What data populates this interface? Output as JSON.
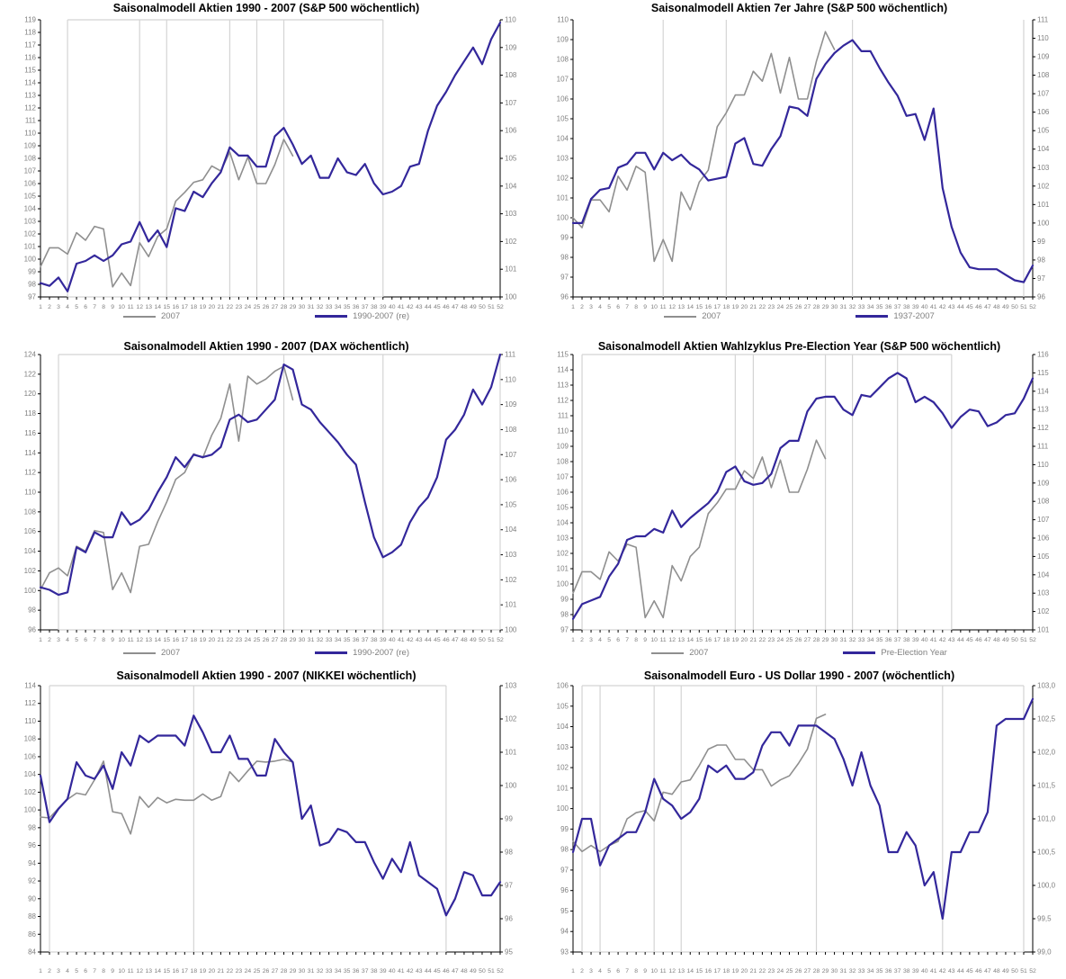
{
  "page": {
    "background": "#ffffff"
  },
  "colors": {
    "series_2007": "#8f8f8f",
    "series_seasonal": "#33279b",
    "gridline": "#d4d4d4",
    "axis": "#000000",
    "tick_label": "#808080",
    "title": "#000000",
    "legend_text": "#7f7f7f"
  },
  "x_ticks": [
    1,
    2,
    3,
    4,
    5,
    6,
    7,
    8,
    9,
    10,
    11,
    12,
    13,
    14,
    15,
    16,
    17,
    18,
    19,
    20,
    21,
    22,
    23,
    24,
    25,
    26,
    27,
    28,
    29,
    30,
    31,
    32,
    33,
    34,
    35,
    36,
    37,
    38,
    39,
    40,
    41,
    42,
    43,
    44,
    45,
    46,
    47,
    48,
    49,
    50,
    51,
    52
  ],
  "charts": [
    {
      "key": "sp500-1990-2007",
      "title": "Saisonalmodell Aktien 1990 - 2007 (S&P 500 wöchentlich)",
      "y_left": {
        "min": 97,
        "max": 119,
        "step": 1,
        "decimals": 0
      },
      "y_right": {
        "min": 100,
        "max": 110,
        "step": 1,
        "decimals": 0
      },
      "box_weeks": [
        4,
        39
      ],
      "gridline_weeks": [
        12,
        15,
        22,
        25,
        28
      ],
      "legend_labels": [
        "2007",
        "1990-2007 (re)"
      ],
      "series": [
        {
          "name": "2007",
          "color_key": "series_2007",
          "axis": "left",
          "values": [
            99.4,
            100.9,
            100.9,
            100.4,
            102.1,
            101.5,
            102.6,
            102.4,
            97.8,
            98.9,
            97.9,
            101.3,
            100.2,
            101.8,
            102.4,
            104.6,
            105.3,
            106.1,
            106.3,
            107.4,
            107.0,
            108.5,
            106.3,
            108.1,
            106.0,
            106.0,
            107.5,
            109.5,
            108.2
          ]
        },
        {
          "name": "1990-2007 (re)",
          "color_key": "series_seasonal",
          "axis": "right",
          "values": [
            100.5,
            100.4,
            100.7,
            100.2,
            101.2,
            101.3,
            101.5,
            101.3,
            101.5,
            101.9,
            102.0,
            102.7,
            102.0,
            102.4,
            101.8,
            103.2,
            103.1,
            103.8,
            103.6,
            104.1,
            104.5,
            105.4,
            105.1,
            105.1,
            104.7,
            104.7,
            105.8,
            106.1,
            105.5,
            104.8,
            105.1,
            104.3,
            104.3,
            105.0,
            104.5,
            104.4,
            104.8,
            104.1,
            103.7,
            103.8,
            104.0,
            104.7,
            104.8,
            106.0,
            106.9,
            107.4,
            108.0,
            108.5,
            109.0,
            108.4,
            109.3,
            109.9
          ]
        }
      ]
    },
    {
      "key": "sp500-7er-jahre",
      "title": "Saisonalmodell Aktien 7er Jahre (S&P 500 wöchentlich)",
      "y_left": {
        "min": 96,
        "max": 110,
        "step": 1,
        "decimals": 0
      },
      "y_right": {
        "min": 96,
        "max": 111,
        "step": 1,
        "decimals": 0
      },
      "box_weeks": null,
      "gridline_weeks": [
        11,
        18,
        32,
        51
      ],
      "legend_labels": [
        "2007",
        "1937-2007"
      ],
      "series": [
        {
          "name": "2007",
          "color_key": "series_2007",
          "axis": "left",
          "values": [
            100.0,
            99.5,
            100.9,
            100.9,
            100.3,
            102.1,
            101.4,
            102.6,
            102.3,
            97.8,
            98.9,
            97.8,
            101.3,
            100.4,
            101.8,
            102.4,
            104.6,
            105.3,
            106.2,
            106.2,
            107.4,
            106.9,
            108.3,
            106.3,
            108.1,
            106.0,
            106.0,
            107.9,
            109.4,
            108.5
          ]
        },
        {
          "name": "1937-2007",
          "color_key": "series_seasonal",
          "axis": "right",
          "values": [
            100.0,
            100.0,
            101.3,
            101.8,
            101.9,
            103.0,
            103.2,
            103.8,
            103.8,
            102.9,
            103.8,
            103.4,
            103.7,
            103.2,
            102.9,
            102.3,
            102.4,
            102.5,
            104.3,
            104.6,
            103.2,
            103.1,
            104.0,
            104.7,
            106.3,
            106.2,
            105.8,
            107.8,
            108.6,
            109.2,
            109.6,
            109.9,
            109.3,
            109.3,
            108.4,
            107.6,
            106.9,
            105.8,
            105.9,
            104.5,
            106.2,
            101.9,
            99.8,
            98.4,
            97.6,
            97.5,
            97.5,
            97.5,
            97.2,
            96.9,
            96.8,
            97.7
          ]
        }
      ]
    },
    {
      "key": "dax-1990-2007",
      "title": "Saisonalmodell Aktien 1990 - 2007 (DAX wöchentlich)",
      "y_left": {
        "min": 96,
        "max": 124,
        "step": 2,
        "decimals": 0
      },
      "y_right": {
        "min": 100,
        "max": 111,
        "step": 1,
        "decimals": 0
      },
      "box_weeks": [
        3,
        52
      ],
      "gridline_weeks": [
        28,
        39
      ],
      "legend_labels": [
        "2007",
        "1990-2007 (re)"
      ],
      "series": [
        {
          "name": "2007",
          "color_key": "series_2007",
          "axis": "left",
          "values": [
            100.1,
            101.8,
            102.3,
            101.5,
            104.5,
            104.0,
            106.1,
            105.9,
            100.1,
            101.8,
            99.8,
            104.5,
            104.7,
            107.0,
            109.0,
            111.3,
            112.0,
            113.9,
            113.5,
            115.8,
            117.5,
            121.0,
            115.2,
            121.8,
            121.0,
            121.5,
            122.3,
            122.8,
            119.4
          ]
        },
        {
          "name": "1990-2007 (re)",
          "color_key": "series_seasonal",
          "axis": "right",
          "values": [
            101.7,
            101.6,
            101.4,
            101.5,
            103.3,
            103.1,
            103.9,
            103.7,
            103.7,
            104.7,
            104.2,
            104.4,
            104.8,
            105.5,
            106.1,
            106.9,
            106.5,
            107.0,
            106.9,
            107.0,
            107.3,
            108.4,
            108.6,
            108.3,
            108.4,
            108.8,
            109.2,
            110.6,
            110.4,
            109.0,
            108.8,
            108.3,
            107.9,
            107.5,
            107.0,
            106.6,
            105.1,
            103.7,
            102.9,
            103.1,
            103.4,
            104.3,
            104.9,
            105.3,
            106.1,
            107.6,
            108.0,
            108.6,
            109.6,
            109.0,
            109.7,
            111.0
          ]
        }
      ]
    },
    {
      "key": "sp500-pre-election",
      "title": "Saisonalmodell Aktien Wahlzyklus Pre-Election Year (S&P 500 wöchentlich)",
      "y_left": {
        "min": 97,
        "max": 115,
        "step": 1,
        "decimals": 0
      },
      "y_right": {
        "min": 101,
        "max": 116,
        "step": 1,
        "decimals": 0
      },
      "box_weeks": [
        2,
        43
      ],
      "gridline_weeks": [
        19,
        21,
        29,
        32,
        37
      ],
      "legend_labels": [
        "2007",
        "Pre-Election Year"
      ],
      "series": [
        {
          "name": "2007",
          "color_key": "series_2007",
          "axis": "left",
          "values": [
            99.4,
            100.8,
            100.8,
            100.3,
            102.1,
            101.5,
            102.6,
            102.4,
            97.8,
            98.9,
            97.8,
            101.2,
            100.2,
            101.8,
            102.4,
            104.6,
            105.3,
            106.2,
            106.2,
            107.4,
            106.9,
            108.3,
            106.3,
            108.1,
            106.0,
            106.0,
            107.5,
            109.4,
            108.2
          ]
        },
        {
          "name": "Pre-Election Year",
          "color_key": "series_seasonal",
          "axis": "right",
          "values": [
            101.6,
            102.4,
            102.6,
            102.8,
            103.9,
            104.6,
            105.9,
            106.1,
            106.1,
            106.5,
            106.3,
            107.5,
            106.6,
            107.1,
            107.5,
            107.9,
            108.5,
            109.6,
            109.9,
            109.1,
            108.9,
            109.0,
            109.5,
            110.9,
            111.3,
            111.3,
            112.9,
            113.6,
            113.7,
            113.7,
            113.0,
            112.7,
            113.8,
            113.7,
            114.2,
            114.7,
            115.0,
            114.7,
            113.4,
            113.7,
            113.4,
            112.8,
            112.0,
            112.6,
            113.0,
            112.9,
            112.1,
            112.3,
            112.7,
            112.8,
            113.6,
            114.7
          ]
        }
      ]
    },
    {
      "key": "nikkei-1990-2007",
      "title": "Saisonalmodell Aktien 1990 - 2007 (NIKKEI wöchentlich)",
      "y_left": {
        "min": 84,
        "max": 114,
        "step": 2,
        "decimals": 0
      },
      "y_right": {
        "min": 95,
        "max": 103,
        "step": 1,
        "decimals": 0
      },
      "box_weeks": [
        2,
        46
      ],
      "gridline_weeks": [
        18
      ],
      "legend_labels": null,
      "series": [
        {
          "name": "2007",
          "color_key": "series_2007",
          "axis": "left",
          "values": [
            99.2,
            99.1,
            100.2,
            101.2,
            101.9,
            101.7,
            103.4,
            105.5,
            99.8,
            99.6,
            97.3,
            101.5,
            100.3,
            101.4,
            100.8,
            101.2,
            101.1,
            101.1,
            101.8,
            101.1,
            101.5,
            104.3,
            103.2,
            104.4,
            105.5,
            105.4,
            105.5,
            105.7,
            105.4
          ]
        },
        {
          "name": "1990-2007 (re)",
          "color_key": "series_seasonal",
          "axis": "right",
          "values": [
            100.3,
            98.9,
            99.3,
            99.6,
            100.7,
            100.3,
            100.2,
            100.6,
            99.9,
            101.0,
            100.6,
            101.5,
            101.3,
            101.5,
            101.5,
            101.5,
            101.2,
            102.1,
            101.6,
            101.0,
            101.0,
            101.5,
            100.8,
            100.8,
            100.3,
            100.3,
            101.4,
            101.0,
            100.7,
            99.0,
            99.4,
            98.2,
            98.3,
            98.7,
            98.6,
            98.3,
            98.3,
            97.7,
            97.2,
            97.8,
            97.4,
            98.3,
            97.3,
            97.1,
            96.9,
            96.1,
            96.6,
            97.4,
            97.3,
            96.7,
            96.7,
            97.1
          ]
        }
      ]
    },
    {
      "key": "eur-usd-1990-2007",
      "title": "Saisonalmodell Euro - US Dollar 1990 - 2007 (wöchentlich)",
      "y_left": {
        "min": 93,
        "max": 106,
        "step": 1,
        "decimals": 0
      },
      "y_right": {
        "min": 99,
        "max": 103,
        "step": 0.5,
        "decimals": 1,
        "comma": true
      },
      "box_weeks": [
        2,
        51
      ],
      "gridline_weeks": [
        4,
        10,
        13,
        28,
        42
      ],
      "legend_labels": null,
      "series": [
        {
          "name": "2007",
          "color_key": "series_2007",
          "axis": "left",
          "values": [
            98.4,
            97.9,
            98.2,
            97.9,
            98.2,
            98.4,
            99.5,
            99.8,
            99.9,
            99.4,
            100.8,
            100.7,
            101.3,
            101.4,
            102.1,
            102.9,
            103.1,
            103.1,
            102.4,
            102.4,
            101.9,
            101.9,
            101.1,
            101.4,
            101.6,
            102.2,
            102.9,
            104.4,
            104.6
          ]
        },
        {
          "name": "1990-2007 (re)",
          "color_key": "series_seasonal",
          "axis": "right",
          "values": [
            100.5,
            101.0,
            101.0,
            100.3,
            100.6,
            100.7,
            100.8,
            100.8,
            101.1,
            101.6,
            101.3,
            101.2,
            101.0,
            101.1,
            101.3,
            101.8,
            101.7,
            101.8,
            101.6,
            101.6,
            101.7,
            102.1,
            102.3,
            102.3,
            102.1,
            102.4,
            102.4,
            102.4,
            102.3,
            102.2,
            101.9,
            101.5,
            102.0,
            101.5,
            101.2,
            100.5,
            100.5,
            100.8,
            100.6,
            100.0,
            100.2,
            99.5,
            100.5,
            100.5,
            100.8,
            100.8,
            101.1,
            102.4,
            102.5,
            102.5,
            102.5,
            102.8
          ]
        }
      ]
    }
  ],
  "chart_data": [
    {
      "type": "line",
      "title": "Saisonalmodell Aktien 1990 - 2007 (S&P 500 wöchentlich)",
      "x": "weeks 1-52",
      "ylim_left": [
        97,
        119
      ],
      "ylim_right": [
        100,
        110
      ],
      "legend_position": "bottom",
      "grid": "vertical lines weeks 4,12,15,22,25,28,39",
      "series_ref": "charts[0].series"
    },
    {
      "type": "line",
      "title": "Saisonalmodell Aktien 7er Jahre (S&P 500 wöchentlich)",
      "x": "weeks 1-52",
      "ylim_left": [
        96,
        110
      ],
      "ylim_right": [
        96,
        111
      ],
      "legend_position": "bottom",
      "grid": "vertical lines weeks 11,18,32,51",
      "series_ref": "charts[1].series"
    },
    {
      "type": "line",
      "title": "Saisonalmodell Aktien 1990 - 2007 (DAX wöchentlich)",
      "x": "weeks 1-52",
      "ylim_left": [
        96,
        124
      ],
      "ylim_right": [
        100,
        111
      ],
      "legend_position": "bottom",
      "grid": "vertical lines weeks 3,28,39,52",
      "series_ref": "charts[2].series"
    },
    {
      "type": "line",
      "title": "Saisonalmodell Aktien Wahlzyklus Pre-Election Year (S&P 500 wöchentlich)",
      "x": "weeks 1-52",
      "ylim_left": [
        97,
        115
      ],
      "ylim_right": [
        101,
        116
      ],
      "legend_position": "bottom",
      "grid": "vertical lines weeks 2,19,21,29,32,37,43",
      "series_ref": "charts[3].series"
    },
    {
      "type": "line",
      "title": "Saisonalmodell Aktien 1990 - 2007 (NIKKEI wöchentlich)",
      "x": "weeks 1-52",
      "ylim_left": [
        84,
        114
      ],
      "ylim_right": [
        95,
        103
      ],
      "legend_position": "none",
      "grid": "vertical lines weeks 2,18,46",
      "series_ref": "charts[4].series"
    },
    {
      "type": "line",
      "title": "Saisonalmodell Euro - US Dollar 1990 - 2007 (wöchentlich)",
      "x": "weeks 1-52",
      "ylim_left": [
        93,
        106
      ],
      "ylim_right": [
        99.0,
        103.0
      ],
      "legend_position": "none",
      "grid": "vertical lines weeks 2,4,10,13,28,42,51",
      "series_ref": "charts[5].series"
    }
  ]
}
